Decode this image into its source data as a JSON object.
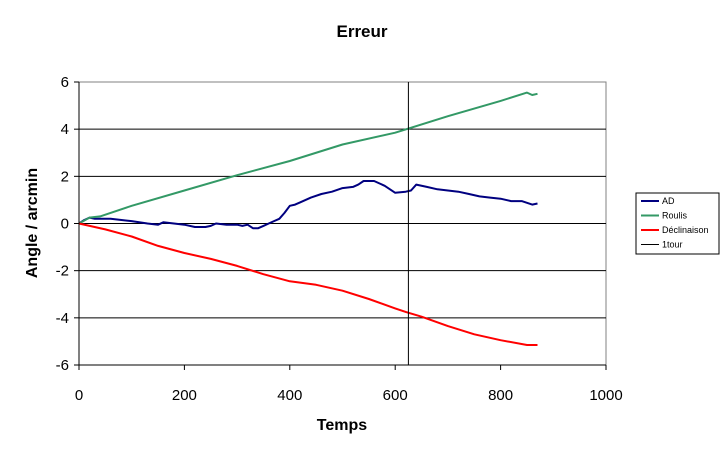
{
  "chart_data": {
    "type": "line",
    "title": "Erreur",
    "xlabel": "Temps",
    "ylabel": "Angle / arcmin",
    "xlim": [
      0,
      1000
    ],
    "ylim": [
      -6,
      6
    ],
    "xticks": [
      0,
      200,
      400,
      600,
      800,
      1000
    ],
    "yticks": [
      -6,
      -4,
      -2,
      0,
      2,
      4,
      6
    ],
    "grid": "horizontal major gridlines",
    "legend_position": "right",
    "series": [
      {
        "name": "AD",
        "color": "#000080",
        "x": [
          0,
          10,
          20,
          30,
          60,
          100,
          130,
          150,
          160,
          180,
          200,
          220,
          240,
          250,
          260,
          280,
          300,
          310,
          320,
          330,
          340,
          350,
          360,
          370,
          380,
          390,
          400,
          410,
          420,
          440,
          460,
          480,
          500,
          520,
          530,
          540,
          560,
          580,
          600,
          620,
          630,
          640,
          660,
          680,
          700,
          720,
          740,
          760,
          780,
          800,
          820,
          840,
          860,
          870
        ],
        "y": [
          0,
          0.15,
          0.25,
          0.2,
          0.2,
          0.1,
          0.0,
          -0.05,
          0.05,
          0.0,
          -0.05,
          -0.15,
          -0.15,
          -0.1,
          0.0,
          -0.05,
          -0.05,
          -0.1,
          -0.05,
          -0.2,
          -0.2,
          -0.1,
          0.0,
          0.1,
          0.2,
          0.45,
          0.75,
          0.8,
          0.9,
          1.1,
          1.25,
          1.35,
          1.5,
          1.55,
          1.65,
          1.8,
          1.8,
          1.6,
          1.3,
          1.35,
          1.4,
          1.65,
          1.55,
          1.45,
          1.4,
          1.35,
          1.25,
          1.15,
          1.1,
          1.05,
          0.95,
          0.95,
          0.8,
          0.85
        ]
      },
      {
        "name": "Roulis",
        "color": "#339966",
        "x": [
          0,
          20,
          40,
          100,
          200,
          300,
          400,
          500,
          600,
          700,
          800,
          850,
          860,
          870
        ],
        "y": [
          0,
          0.25,
          0.3,
          0.75,
          1.4,
          2.05,
          2.65,
          3.35,
          3.85,
          4.55,
          5.2,
          5.55,
          5.45,
          5.5
        ],
        "note": "Roughly linear increase"
      },
      {
        "name": "Déclinaison",
        "color": "#ff0000",
        "x": [
          0,
          50,
          100,
          150,
          200,
          250,
          300,
          350,
          400,
          450,
          500,
          550,
          600,
          620,
          650,
          700,
          750,
          800,
          850,
          870
        ],
        "y": [
          0,
          -0.25,
          -0.55,
          -0.95,
          -1.25,
          -1.5,
          -1.8,
          -2.15,
          -2.45,
          -2.6,
          -2.85,
          -3.2,
          -3.6,
          -3.75,
          -3.95,
          -4.35,
          -4.7,
          -4.95,
          -5.15,
          -5.15
        ]
      },
      {
        "name": "1tour",
        "color": "#000000",
        "x": [
          625,
          625
        ],
        "y": [
          -6,
          6
        ]
      }
    ]
  },
  "legend": {
    "items": [
      {
        "label": "AD",
        "color": "#000080"
      },
      {
        "label": "Roulis",
        "color": "#339966"
      },
      {
        "label": "Déclinaison",
        "color": "#ff0000"
      },
      {
        "label": "1tour",
        "color": "#000000"
      }
    ]
  }
}
